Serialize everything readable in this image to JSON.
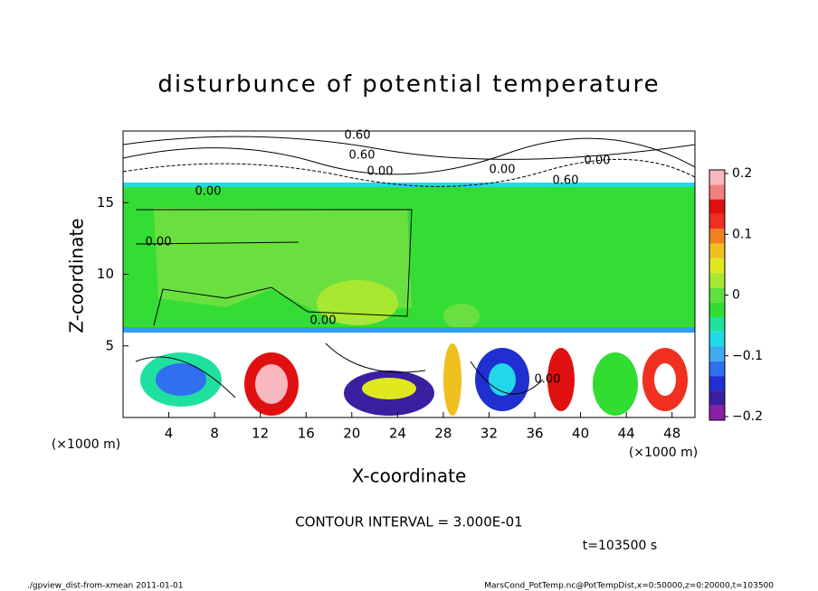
{
  "chart_data": {
    "type": "contour",
    "title": "disturbunce of potential temperature",
    "x_label": "X-coordinate",
    "y_label": "Z-coordinate",
    "x_unit": "(×1000 m)",
    "xlim": [
      0,
      50
    ],
    "xticks": [
      4,
      8,
      12,
      16,
      20,
      24,
      28,
      32,
      36,
      40,
      44,
      48
    ],
    "ylim": [
      0,
      20
    ],
    "yticks": [
      5,
      10,
      15
    ],
    "colorbar": {
      "lim": [
        -0.2,
        0.2
      ],
      "ticks": [
        {
          "value": -0.2,
          "label": "−0.2"
        },
        {
          "value": -0.1,
          "label": "−0.1"
        },
        0,
        0.1,
        0.2
      ],
      "colors": [
        "#8a1fa8",
        "#3a1fa0",
        "#1f2fd0",
        "#2f6ff0",
        "#3faaf0",
        "#20d8e8",
        "#20e0a0",
        "#30dd30",
        "#60e040",
        "#a8e830",
        "#e0e820",
        "#f0c020",
        "#f08020",
        "#f03020",
        "#e01010",
        "#f08080",
        "#f8b8c0"
      ]
    },
    "contour_labels": [
      "0.60",
      "0.60",
      "0.60",
      "0.00",
      "0.00",
      "0.00",
      "0.00",
      "0.00",
      "0.00",
      "0.00"
    ],
    "contour_interval": "CONTOUR INTERVAL = 3.000E-01",
    "time_label": "t=103500 s",
    "footer_left": "./gpview_dist-from-xmean  2011-01-01",
    "footer_right": "MarsCond_PotTemp.nc@PotTempDist,x=0:50000,z=0:20000,t=103500"
  }
}
